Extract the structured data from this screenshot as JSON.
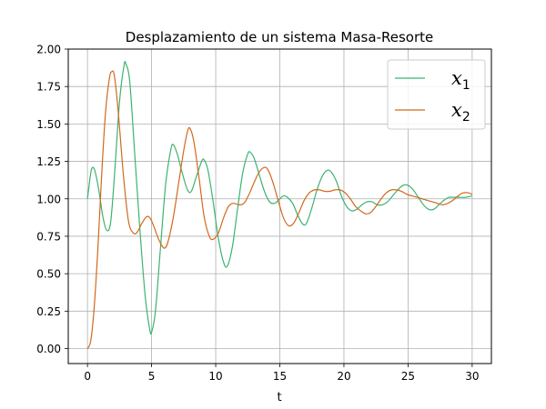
{
  "chart_data": {
    "type": "line",
    "title": "Desplazamiento de un sistema Masa-Resorte",
    "xlabel": "t",
    "ylabel": "",
    "xlim": [
      -1.5,
      31.5
    ],
    "ylim": [
      -0.1,
      2.0
    ],
    "xticks": [
      0,
      5,
      10,
      15,
      20,
      25,
      30
    ],
    "yticks": [
      0.0,
      0.25,
      0.5,
      0.75,
      1.0,
      1.25,
      1.5,
      1.75,
      2.0
    ],
    "xtick_labels": [
      "0",
      "5",
      "10",
      "15",
      "20",
      "25",
      "30"
    ],
    "ytick_labels": [
      "0.00",
      "0.25",
      "0.50",
      "0.75",
      "1.00",
      "1.25",
      "1.50",
      "1.75",
      "2.00"
    ],
    "grid": true,
    "legend_position": "top-right",
    "series": [
      {
        "name": "x",
        "subscript": "1",
        "color": "#3cb371",
        "points": [
          [
            0,
            1.0
          ],
          [
            0.25,
            1.17
          ],
          [
            0.4,
            1.21
          ],
          [
            0.6,
            1.18
          ],
          [
            0.9,
            1.05
          ],
          [
            1.2,
            0.88
          ],
          [
            1.5,
            0.79
          ],
          [
            1.8,
            0.84
          ],
          [
            2.1,
            1.15
          ],
          [
            2.5,
            1.65
          ],
          [
            2.85,
            1.89
          ],
          [
            3.0,
            1.9
          ],
          [
            3.3,
            1.78
          ],
          [
            3.7,
            1.28
          ],
          [
            4.1,
            0.78
          ],
          [
            4.5,
            0.35
          ],
          [
            4.85,
            0.13
          ],
          [
            5.0,
            0.11
          ],
          [
            5.3,
            0.25
          ],
          [
            5.7,
            0.68
          ],
          [
            6.1,
            1.1
          ],
          [
            6.5,
            1.33
          ],
          [
            6.7,
            1.36
          ],
          [
            7.0,
            1.3
          ],
          [
            7.4,
            1.17
          ],
          [
            7.8,
            1.06
          ],
          [
            8.1,
            1.05
          ],
          [
            8.5,
            1.15
          ],
          [
            8.9,
            1.25
          ],
          [
            9.1,
            1.26
          ],
          [
            9.4,
            1.19
          ],
          [
            9.8,
            0.98
          ],
          [
            10.2,
            0.74
          ],
          [
            10.6,
            0.58
          ],
          [
            10.9,
            0.55
          ],
          [
            11.3,
            0.68
          ],
          [
            11.7,
            0.93
          ],
          [
            12.1,
            1.17
          ],
          [
            12.5,
            1.3
          ],
          [
            12.7,
            1.31
          ],
          [
            13.0,
            1.27
          ],
          [
            13.4,
            1.16
          ],
          [
            13.8,
            1.05
          ],
          [
            14.2,
            0.98
          ],
          [
            14.6,
            0.97
          ],
          [
            15.0,
            1.0
          ],
          [
            15.3,
            1.02
          ],
          [
            15.6,
            1.01
          ],
          [
            16.0,
            0.97
          ],
          [
            16.4,
            0.89
          ],
          [
            16.8,
            0.83
          ],
          [
            17.1,
            0.84
          ],
          [
            17.5,
            0.94
          ],
          [
            17.9,
            1.06
          ],
          [
            18.3,
            1.15
          ],
          [
            18.7,
            1.19
          ],
          [
            19.0,
            1.18
          ],
          [
            19.4,
            1.12
          ],
          [
            19.8,
            1.02
          ],
          [
            20.2,
            0.95
          ],
          [
            20.6,
            0.92
          ],
          [
            21.0,
            0.93
          ],
          [
            21.4,
            0.96
          ],
          [
            21.8,
            0.98
          ],
          [
            22.2,
            0.98
          ],
          [
            22.6,
            0.96
          ],
          [
            23.0,
            0.96
          ],
          [
            23.4,
            0.98
          ],
          [
            23.8,
            1.02
          ],
          [
            24.2,
            1.06
          ],
          [
            24.6,
            1.09
          ],
          [
            25.0,
            1.09
          ],
          [
            25.4,
            1.06
          ],
          [
            25.8,
            1.01
          ],
          [
            26.2,
            0.96
          ],
          [
            26.6,
            0.93
          ],
          [
            27.0,
            0.93
          ],
          [
            27.4,
            0.96
          ],
          [
            27.8,
            0.99
          ],
          [
            28.2,
            1.01
          ],
          [
            28.6,
            1.01
          ],
          [
            29.0,
            1.01
          ],
          [
            29.5,
            1.01
          ],
          [
            30.0,
            1.02
          ]
        ]
      },
      {
        "name": "x",
        "subscript": "2",
        "color": "#d2691e",
        "points": [
          [
            0,
            0.0
          ],
          [
            0.25,
            0.05
          ],
          [
            0.5,
            0.25
          ],
          [
            0.8,
            0.65
          ],
          [
            1.1,
            1.15
          ],
          [
            1.4,
            1.57
          ],
          [
            1.7,
            1.8
          ],
          [
            1.9,
            1.85
          ],
          [
            2.1,
            1.82
          ],
          [
            2.4,
            1.58
          ],
          [
            2.8,
            1.16
          ],
          [
            3.2,
            0.85
          ],
          [
            3.6,
            0.77
          ],
          [
            3.9,
            0.78
          ],
          [
            4.2,
            0.83
          ],
          [
            4.6,
            0.88
          ],
          [
            4.9,
            0.87
          ],
          [
            5.2,
            0.81
          ],
          [
            5.6,
            0.72
          ],
          [
            6.0,
            0.67
          ],
          [
            6.3,
            0.72
          ],
          [
            6.7,
            0.88
          ],
          [
            7.1,
            1.1
          ],
          [
            7.5,
            1.32
          ],
          [
            7.8,
            1.45
          ],
          [
            8.0,
            1.47
          ],
          [
            8.3,
            1.38
          ],
          [
            8.7,
            1.14
          ],
          [
            9.1,
            0.88
          ],
          [
            9.5,
            0.75
          ],
          [
            9.8,
            0.73
          ],
          [
            10.2,
            0.77
          ],
          [
            10.6,
            0.87
          ],
          [
            11.0,
            0.95
          ],
          [
            11.4,
            0.97
          ],
          [
            11.8,
            0.96
          ],
          [
            12.2,
            0.97
          ],
          [
            12.6,
            1.03
          ],
          [
            13.0,
            1.11
          ],
          [
            13.4,
            1.18
          ],
          [
            13.8,
            1.21
          ],
          [
            14.1,
            1.19
          ],
          [
            14.5,
            1.1
          ],
          [
            14.9,
            0.98
          ],
          [
            15.3,
            0.87
          ],
          [
            15.7,
            0.82
          ],
          [
            16.1,
            0.84
          ],
          [
            16.5,
            0.91
          ],
          [
            16.9,
            0.99
          ],
          [
            17.3,
            1.04
          ],
          [
            17.7,
            1.06
          ],
          [
            18.1,
            1.06
          ],
          [
            18.5,
            1.05
          ],
          [
            18.9,
            1.05
          ],
          [
            19.3,
            1.06
          ],
          [
            19.7,
            1.06
          ],
          [
            20.1,
            1.04
          ],
          [
            20.5,
            1.0
          ],
          [
            20.9,
            0.95
          ],
          [
            21.3,
            0.92
          ],
          [
            21.7,
            0.9
          ],
          [
            22.1,
            0.91
          ],
          [
            22.5,
            0.95
          ],
          [
            22.9,
            1.0
          ],
          [
            23.3,
            1.04
          ],
          [
            23.7,
            1.06
          ],
          [
            24.1,
            1.06
          ],
          [
            24.5,
            1.05
          ],
          [
            24.9,
            1.03
          ],
          [
            25.3,
            1.02
          ],
          [
            25.7,
            1.01
          ],
          [
            26.1,
            1.0
          ],
          [
            26.5,
            0.99
          ],
          [
            26.9,
            0.98
          ],
          [
            27.3,
            0.97
          ],
          [
            27.7,
            0.96
          ],
          [
            28.1,
            0.97
          ],
          [
            28.5,
            0.99
          ],
          [
            28.9,
            1.02
          ],
          [
            29.3,
            1.04
          ],
          [
            29.7,
            1.04
          ],
          [
            30.0,
            1.03
          ]
        ]
      }
    ]
  }
}
